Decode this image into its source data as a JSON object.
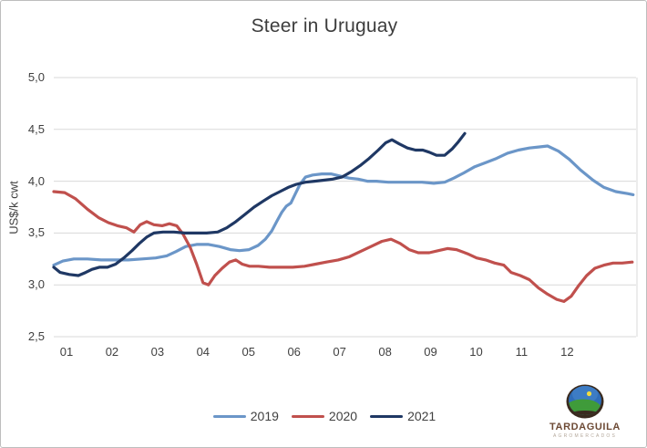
{
  "chart_data": {
    "type": "line",
    "title": "Steer in Uruguay",
    "xlabel": "",
    "ylabel": "US$/k cwt",
    "ylim": [
      2.5,
      5.0
    ],
    "grid": "horizontal",
    "legend_position": "bottom",
    "x_unit": "month (weekly points)",
    "y_ticks": [
      {
        "value": 5.0,
        "label": "5,0"
      },
      {
        "value": 4.5,
        "label": "4,5"
      },
      {
        "value": 4.0,
        "label": "4,0"
      },
      {
        "value": 3.5,
        "label": "3,5"
      },
      {
        "value": 3.0,
        "label": "3,0"
      },
      {
        "value": 2.5,
        "label": "2,5"
      }
    ],
    "x_ticks": [
      "01",
      "02",
      "03",
      "04",
      "05",
      "06",
      "07",
      "08",
      "09",
      "10",
      "11",
      "12"
    ],
    "series": [
      {
        "name": "2019",
        "color": "#6b96c8",
        "points": [
          [
            0.72,
            3.19
          ],
          [
            0.92,
            3.23
          ],
          [
            1.16,
            3.25
          ],
          [
            1.46,
            3.25
          ],
          [
            1.76,
            3.24
          ],
          [
            2.06,
            3.24
          ],
          [
            2.36,
            3.24
          ],
          [
            2.66,
            3.25
          ],
          [
            2.96,
            3.26
          ],
          [
            3.2,
            3.28
          ],
          [
            3.4,
            3.32
          ],
          [
            3.62,
            3.37
          ],
          [
            3.86,
            3.39
          ],
          [
            4.12,
            3.39
          ],
          [
            4.36,
            3.37
          ],
          [
            4.6,
            3.34
          ],
          [
            4.8,
            3.33
          ],
          [
            5.01,
            3.34
          ],
          [
            5.21,
            3.38
          ],
          [
            5.37,
            3.44
          ],
          [
            5.51,
            3.52
          ],
          [
            5.63,
            3.62
          ],
          [
            5.73,
            3.7
          ],
          [
            5.83,
            3.76
          ],
          [
            5.93,
            3.79
          ],
          [
            6.03,
            3.88
          ],
          [
            6.13,
            3.97
          ],
          [
            6.25,
            4.04
          ],
          [
            6.41,
            4.06
          ],
          [
            6.61,
            4.07
          ],
          [
            6.81,
            4.07
          ],
          [
            7.01,
            4.05
          ],
          [
            7.21,
            4.03
          ],
          [
            7.41,
            4.02
          ],
          [
            7.61,
            4.0
          ],
          [
            7.81,
            4.0
          ],
          [
            8.07,
            3.99
          ],
          [
            8.31,
            3.99
          ],
          [
            8.57,
            3.99
          ],
          [
            8.81,
            3.99
          ],
          [
            9.07,
            3.98
          ],
          [
            9.31,
            3.99
          ],
          [
            9.51,
            4.03
          ],
          [
            9.73,
            4.08
          ],
          [
            9.97,
            4.14
          ],
          [
            10.21,
            4.18
          ],
          [
            10.45,
            4.22
          ],
          [
            10.69,
            4.27
          ],
          [
            10.93,
            4.3
          ],
          [
            11.17,
            4.32
          ],
          [
            11.37,
            4.33
          ],
          [
            11.57,
            4.34
          ],
          [
            11.81,
            4.29
          ],
          [
            12.05,
            4.21
          ],
          [
            12.29,
            4.11
          ],
          [
            12.57,
            4.01
          ],
          [
            12.81,
            3.94
          ],
          [
            13.07,
            3.9
          ],
          [
            13.33,
            3.88
          ],
          [
            13.45,
            3.87
          ]
        ]
      },
      {
        "name": "2020",
        "color": "#c0504d",
        "points": [
          [
            0.72,
            3.9
          ],
          [
            0.96,
            3.89
          ],
          [
            1.2,
            3.83
          ],
          [
            1.46,
            3.73
          ],
          [
            1.7,
            3.65
          ],
          [
            1.92,
            3.6
          ],
          [
            2.12,
            3.57
          ],
          [
            2.32,
            3.55
          ],
          [
            2.48,
            3.51
          ],
          [
            2.62,
            3.58
          ],
          [
            2.76,
            3.61
          ],
          [
            2.92,
            3.58
          ],
          [
            3.1,
            3.57
          ],
          [
            3.26,
            3.59
          ],
          [
            3.42,
            3.57
          ],
          [
            3.56,
            3.49
          ],
          [
            3.72,
            3.36
          ],
          [
            3.86,
            3.2
          ],
          [
            4.0,
            3.02
          ],
          [
            4.12,
            3.0
          ],
          [
            4.26,
            3.09
          ],
          [
            4.42,
            3.16
          ],
          [
            4.58,
            3.22
          ],
          [
            4.72,
            3.24
          ],
          [
            4.86,
            3.2
          ],
          [
            5.02,
            3.18
          ],
          [
            5.22,
            3.18
          ],
          [
            5.46,
            3.17
          ],
          [
            5.71,
            3.17
          ],
          [
            5.97,
            3.17
          ],
          [
            6.23,
            3.18
          ],
          [
            6.47,
            3.2
          ],
          [
            6.71,
            3.22
          ],
          [
            6.97,
            3.24
          ],
          [
            7.21,
            3.27
          ],
          [
            7.45,
            3.32
          ],
          [
            7.69,
            3.37
          ],
          [
            7.93,
            3.42
          ],
          [
            8.13,
            3.44
          ],
          [
            8.33,
            3.4
          ],
          [
            8.53,
            3.34
          ],
          [
            8.73,
            3.31
          ],
          [
            8.97,
            3.31
          ],
          [
            9.17,
            3.33
          ],
          [
            9.37,
            3.35
          ],
          [
            9.57,
            3.34
          ],
          [
            9.81,
            3.3
          ],
          [
            10.01,
            3.26
          ],
          [
            10.21,
            3.24
          ],
          [
            10.41,
            3.21
          ],
          [
            10.61,
            3.19
          ],
          [
            10.77,
            3.12
          ],
          [
            10.97,
            3.09
          ],
          [
            11.17,
            3.05
          ],
          [
            11.37,
            2.97
          ],
          [
            11.57,
            2.91
          ],
          [
            11.77,
            2.86
          ],
          [
            11.93,
            2.84
          ],
          [
            12.09,
            2.89
          ],
          [
            12.25,
            2.99
          ],
          [
            12.43,
            3.09
          ],
          [
            12.61,
            3.16
          ],
          [
            12.81,
            3.19
          ],
          [
            13.01,
            3.21
          ],
          [
            13.21,
            3.21
          ],
          [
            13.43,
            3.22
          ]
        ]
      },
      {
        "name": "2021",
        "color": "#1f3864",
        "points": [
          [
            0.72,
            3.17
          ],
          [
            0.86,
            3.12
          ],
          [
            1.06,
            3.1
          ],
          [
            1.26,
            3.09
          ],
          [
            1.42,
            3.12
          ],
          [
            1.56,
            3.15
          ],
          [
            1.72,
            3.17
          ],
          [
            1.9,
            3.17
          ],
          [
            2.08,
            3.2
          ],
          [
            2.26,
            3.26
          ],
          [
            2.44,
            3.33
          ],
          [
            2.6,
            3.4
          ],
          [
            2.76,
            3.46
          ],
          [
            2.92,
            3.5
          ],
          [
            3.12,
            3.51
          ],
          [
            3.36,
            3.51
          ],
          [
            3.6,
            3.5
          ],
          [
            3.84,
            3.5
          ],
          [
            4.08,
            3.5
          ],
          [
            4.32,
            3.51
          ],
          [
            4.52,
            3.55
          ],
          [
            4.72,
            3.61
          ],
          [
            4.92,
            3.68
          ],
          [
            5.12,
            3.75
          ],
          [
            5.33,
            3.81
          ],
          [
            5.51,
            3.86
          ],
          [
            5.69,
            3.9
          ],
          [
            5.87,
            3.94
          ],
          [
            6.05,
            3.97
          ],
          [
            6.25,
            3.99
          ],
          [
            6.45,
            4.0
          ],
          [
            6.65,
            4.01
          ],
          [
            6.85,
            4.02
          ],
          [
            7.05,
            4.04
          ],
          [
            7.25,
            4.09
          ],
          [
            7.45,
            4.15
          ],
          [
            7.65,
            4.22
          ],
          [
            7.85,
            4.3
          ],
          [
            8.01,
            4.37
          ],
          [
            8.15,
            4.4
          ],
          [
            8.31,
            4.36
          ],
          [
            8.49,
            4.32
          ],
          [
            8.67,
            4.3
          ],
          [
            8.83,
            4.3
          ],
          [
            8.97,
            4.28
          ],
          [
            9.13,
            4.25
          ],
          [
            9.31,
            4.25
          ],
          [
            9.47,
            4.31
          ],
          [
            9.61,
            4.38
          ],
          [
            9.75,
            4.46
          ]
        ]
      }
    ],
    "gridline_color": "#d9d9d9"
  },
  "logo": {
    "brand": "TARDAGUILA",
    "subtitle": "AGROMERCADOS"
  }
}
